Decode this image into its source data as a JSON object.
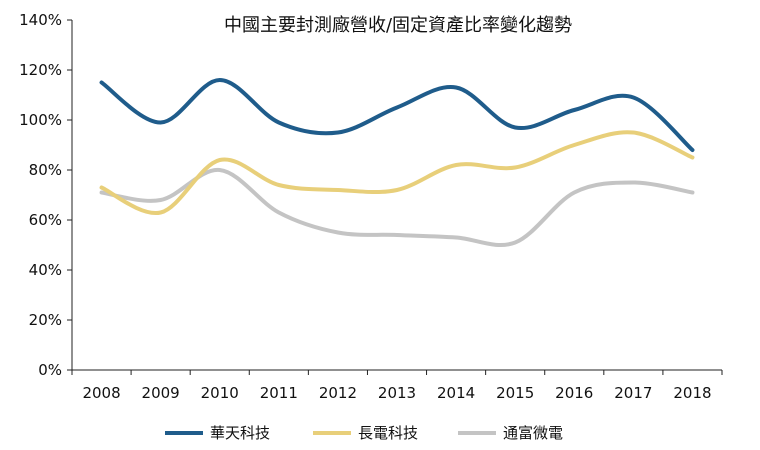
{
  "chart_data": {
    "type": "line",
    "title": "中國主要封測廠營收/固定資產比率變化趨勢",
    "xlabel": "",
    "ylabel": "",
    "x": [
      "2008",
      "2009",
      "2010",
      "2011",
      "2012",
      "2013",
      "2014",
      "2015",
      "2016",
      "2017",
      "2018"
    ],
    "ylim": [
      0,
      140
    ],
    "yticks": [
      "0%",
      "20%",
      "40%",
      "60%",
      "80%",
      "100%",
      "120%",
      "140%"
    ],
    "grid": false,
    "legend": "bottom",
    "series": [
      {
        "name": "華天科技",
        "color": "#1F5C8B",
        "values": [
          115,
          99,
          116,
          99,
          95,
          105,
          113,
          97,
          104,
          109,
          88
        ]
      },
      {
        "name": "長電科技",
        "color": "#E8CF7A",
        "values": [
          73,
          63,
          84,
          74,
          72,
          72,
          82,
          81,
          90,
          95,
          85
        ]
      },
      {
        "name": "通富微電",
        "color": "#C4C4C4",
        "values": [
          71,
          68,
          80,
          63,
          55,
          54,
          53,
          51,
          71,
          75,
          71
        ]
      }
    ]
  }
}
